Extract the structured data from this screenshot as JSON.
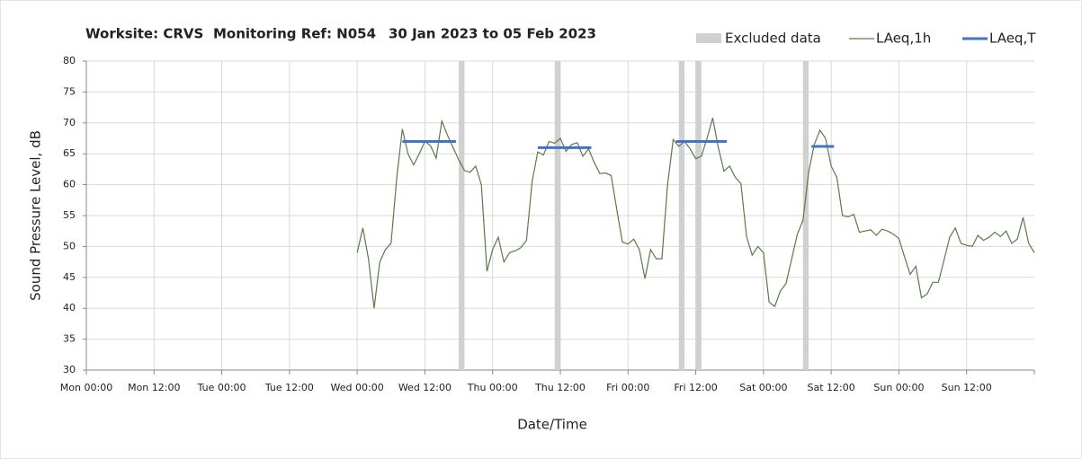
{
  "chart_data": {
    "type": "line",
    "title": [
      "Worksite: CRVS",
      "Monitoring Ref: N054",
      "30 Jan 2023 to 05 Feb 2023"
    ],
    "y_label": "Sound Pressure Level, dB",
    "x_label": "Date/Time",
    "xlim": [
      0,
      168
    ],
    "xticks": [
      {
        "value": 0,
        "label": "Mon 00:00"
      },
      {
        "value": 12,
        "label": "Mon 12:00"
      },
      {
        "value": 24,
        "label": "Tue 00:00"
      },
      {
        "value": 36,
        "label": "Tue 12:00"
      },
      {
        "value": 48,
        "label": "Wed 00:00"
      },
      {
        "value": 60,
        "label": "Wed 12:00"
      },
      {
        "value": 72,
        "label": "Thu 00:00"
      },
      {
        "value": 84,
        "label": "Thu 12:00"
      },
      {
        "value": 96,
        "label": "Fri 00:00"
      },
      {
        "value": 108,
        "label": "Fri 12:00"
      },
      {
        "value": 120,
        "label": "Sat 00:00"
      },
      {
        "value": 132,
        "label": "Sat 12:00"
      },
      {
        "value": 144,
        "label": "Sun 00:00"
      },
      {
        "value": 156,
        "label": "Sun 12:00"
      }
    ],
    "ylim": [
      30,
      80
    ],
    "yticks": [
      30,
      35,
      40,
      45,
      50,
      55,
      60,
      65,
      70,
      75,
      80
    ],
    "grid": true,
    "legend": "top-right",
    "excluded": {
      "name": "Excluded data",
      "color": "#d0d0d0",
      "ranges": [
        [
          66,
          67
        ],
        [
          83,
          84
        ],
        [
          105,
          106
        ],
        [
          108,
          109
        ],
        [
          127,
          128
        ]
      ]
    },
    "series": [
      {
        "name": "LAeq,1h",
        "color": "#5a7a4a",
        "x": [
          48,
          49,
          50,
          51,
          52,
          53,
          54,
          55,
          56,
          57,
          58,
          59,
          60,
          61,
          62,
          63,
          64,
          65,
          66,
          67,
          68,
          69,
          70,
          71,
          72,
          73,
          74,
          75,
          76,
          77,
          78,
          79,
          80,
          81,
          82,
          83,
          84,
          85,
          86,
          87,
          88,
          89,
          90,
          91,
          92,
          93,
          94,
          95,
          96,
          97,
          98,
          99,
          100,
          101,
          102,
          103,
          104,
          105,
          106,
          107,
          108,
          109,
          110,
          111,
          112,
          113,
          114,
          115,
          116,
          117,
          118,
          119,
          120,
          121,
          122,
          123,
          124,
          125,
          126,
          127,
          128,
          129,
          130,
          131,
          132,
          133,
          134,
          135,
          136,
          137,
          138,
          139,
          140,
          141,
          142,
          143,
          144,
          145,
          146,
          147,
          148,
          149,
          150,
          151,
          152,
          153,
          154,
          155,
          156,
          157,
          158,
          159,
          160,
          161,
          162,
          163,
          164,
          165,
          166,
          167,
          168
        ],
        "values": [
          49,
          53,
          48,
          40,
          47.5,
          49.5,
          50.5,
          61,
          69,
          65,
          63.2,
          65,
          67,
          66.3,
          64.3,
          70.3,
          68,
          66,
          64,
          62.3,
          62,
          63,
          60,
          46,
          49.5,
          51.5,
          47.5,
          49,
          49.3,
          49.8,
          51,
          60.5,
          65.3,
          64.8,
          67,
          66.7,
          67.5,
          65.4,
          66.5,
          66.8,
          64.6,
          65.8,
          63.6,
          61.8,
          61.9,
          61.5,
          56,
          50.7,
          50.4,
          51.2,
          49.5,
          44.8,
          49.5,
          48,
          48,
          60,
          67.3,
          66.2,
          67,
          65.8,
          64.2,
          64.6,
          67.5,
          70.8,
          66,
          62.2,
          63,
          61.2,
          60.2,
          51.6,
          48.6,
          50,
          49,
          41,
          40.3,
          42.8,
          44,
          48,
          52,
          54.2,
          62,
          66.5,
          68.8,
          67.5,
          63,
          61.2,
          55,
          54.8,
          55.2,
          52.3,
          52.5,
          52.7,
          51.8,
          52.8,
          52.5,
          52,
          51.3,
          48.3,
          45.5,
          46.8,
          41.7,
          42.3,
          44.2,
          44.2,
          47.8,
          51.5,
          53,
          50.5,
          50.2,
          50,
          51.8,
          51,
          51.5,
          52.3,
          51.6,
          52.5,
          50.5,
          51.2,
          54.7,
          50.5,
          49
        ]
      },
      {
        "name": "LAeq,T",
        "color": "#4472c4",
        "segments": [
          {
            "x": [
              56,
              65.5
            ],
            "value": 67
          },
          {
            "x": [
              80,
              89.5
            ],
            "value": 66
          },
          {
            "x": [
              104.5,
              113.5
            ],
            "value": 67
          },
          {
            "x": [
              128.5,
              132.5
            ],
            "value": 66.2
          }
        ]
      }
    ]
  }
}
